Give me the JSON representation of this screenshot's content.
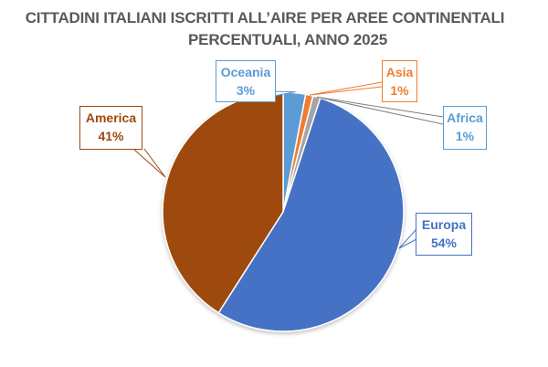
{
  "title": {
    "line1": "CITTADINI ITALIANI ISCRITTI ALL’AIRE PER AREE CONTINENTALI",
    "line2": "PERCENTUALI, ANNO 2025"
  },
  "labels": {
    "oceania": {
      "name": "Oceania",
      "pct": "3%",
      "color": "#5B9BD5"
    },
    "asia": {
      "name": "Asia",
      "pct": "1%",
      "color": "#ED7D31"
    },
    "africa": {
      "name": "Africa",
      "pct": "1%",
      "color": "#5B9BD5"
    },
    "europa": {
      "name": "Europa",
      "pct": "54%",
      "color": "#4472C4"
    },
    "america": {
      "name": "America",
      "pct": "41%",
      "color": "#9E480E"
    }
  },
  "chart_data": {
    "type": "pie",
    "title": "CITTADINI ITALIANI ISCRITTI ALL’AIRE PER AREE CONTINENTALI PERCENTUALI, ANNO 2025",
    "categories": [
      "Oceania",
      "Asia",
      "Africa",
      "Europa",
      "America"
    ],
    "values": [
      3,
      1,
      1,
      54,
      41
    ],
    "unit": "%",
    "colors": [
      "#5B9BD5",
      "#ED7D31",
      "#A5A5A5",
      "#4472C4",
      "#9E480E"
    ],
    "start_angle": "12 o'clock, clockwise",
    "legend": "none (data callout labels)"
  }
}
